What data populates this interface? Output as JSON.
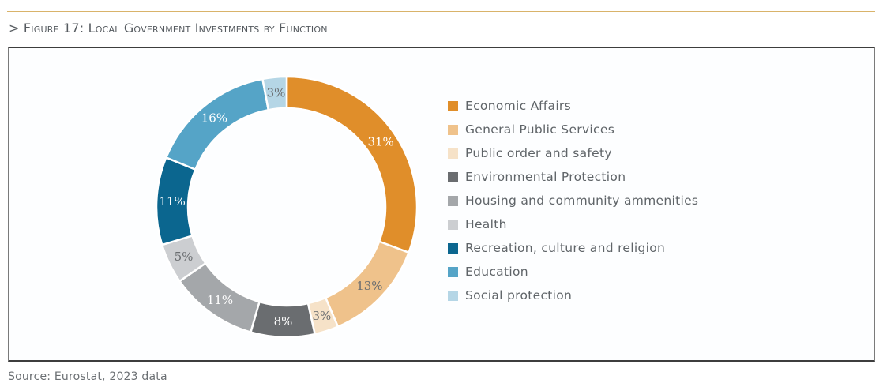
{
  "header": {
    "prefix": ">",
    "title": "Figure 17: Local Government Investments by Function"
  },
  "source": "Source: Eurostat, 2023 data",
  "chart_data": {
    "type": "pie",
    "variant": "donut",
    "title": "Figure 17: Local Government Investments by Function",
    "unit": "%",
    "start_angle_deg": 0,
    "direction": "clockwise",
    "legend_position": "right",
    "categories": [
      "Economic Affairs",
      "General Public Services",
      "Public order and safety",
      "Environmental Protection",
      "Housing and community ammenities",
      "Health",
      "Recreation, culture and religion",
      "Education",
      "Social protection"
    ],
    "values": [
      31,
      13,
      3,
      8,
      11,
      5,
      11,
      16,
      3
    ],
    "labels": [
      "31%",
      "13%",
      "3%",
      "8%",
      "11%",
      "5%",
      "11%",
      "16%",
      "3%"
    ],
    "colors": [
      "#e08e2a",
      "#efc28b",
      "#f6e2c8",
      "#6a6d70",
      "#a4a7aa",
      "#ccced1",
      "#0b668f",
      "#55a4c7",
      "#b5d6e6"
    ],
    "label_colors": [
      "#ffffff",
      "#6a6d70",
      "#6a6d70",
      "#ffffff",
      "#ffffff",
      "#6a6d70",
      "#ffffff",
      "#ffffff",
      "#6a6d70"
    ]
  }
}
